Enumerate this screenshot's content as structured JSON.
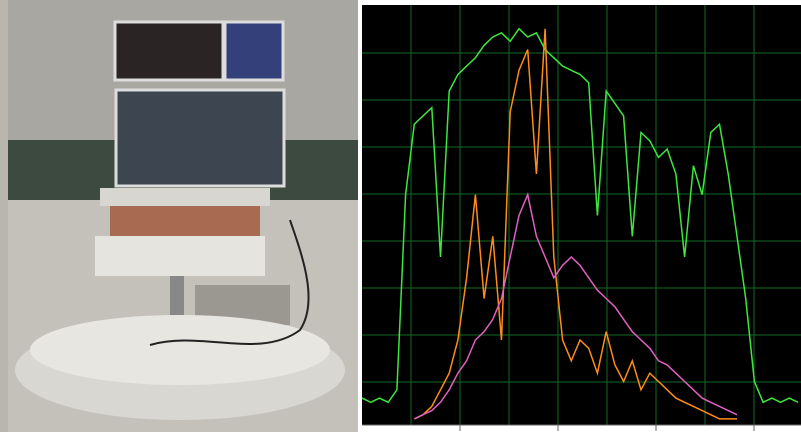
{
  "chart_data": {
    "type": "line",
    "x": [
      0,
      2,
      4,
      6,
      8,
      10,
      12,
      14,
      16,
      18,
      20,
      22,
      24,
      26,
      28,
      30,
      32,
      34,
      36,
      38,
      40,
      42,
      44,
      46,
      48,
      50,
      52,
      54,
      56,
      58,
      60,
      62,
      64,
      66,
      68,
      70,
      72,
      74,
      76,
      78,
      80,
      82,
      84,
      86,
      88,
      90,
      92,
      94,
      96,
      98,
      100
    ],
    "xlim": [
      0,
      100
    ],
    "ylim": [
      0,
      100
    ],
    "series": [
      {
        "color": "#3ee63e",
        "values": [
          6,
          5,
          6,
          5,
          8,
          55,
          72,
          74,
          76,
          40,
          80,
          84,
          86,
          88,
          91,
          93,
          94,
          92,
          95,
          93,
          94,
          90,
          88,
          86,
          85,
          84,
          82,
          50,
          80,
          77,
          74,
          45,
          70,
          68,
          64,
          66,
          60,
          40,
          62,
          55,
          70,
          72,
          60,
          45,
          30,
          10,
          5,
          6,
          5,
          6,
          5
        ]
      },
      {
        "color": "#ff8c1a",
        "values": [
          null,
          null,
          null,
          null,
          null,
          null,
          1,
          2,
          4,
          8,
          12,
          20,
          35,
          55,
          30,
          45,
          20,
          75,
          85,
          90,
          60,
          95,
          40,
          20,
          15,
          20,
          18,
          12,
          22,
          14,
          10,
          15,
          8,
          12,
          10,
          8,
          6,
          5,
          4,
          3,
          2,
          1,
          1,
          1,
          null,
          null,
          null,
          null,
          null,
          null,
          null
        ]
      },
      {
        "color": "#e060c0",
        "values": [
          null,
          null,
          null,
          null,
          null,
          null,
          1,
          2,
          3,
          5,
          8,
          12,
          15,
          20,
          22,
          25,
          30,
          40,
          50,
          55,
          45,
          40,
          35,
          38,
          40,
          38,
          35,
          32,
          30,
          28,
          25,
          22,
          20,
          18,
          15,
          14,
          12,
          10,
          8,
          6,
          5,
          4,
          3,
          2,
          null,
          null,
          null,
          null,
          null,
          null,
          null
        ]
      }
    ]
  }
}
